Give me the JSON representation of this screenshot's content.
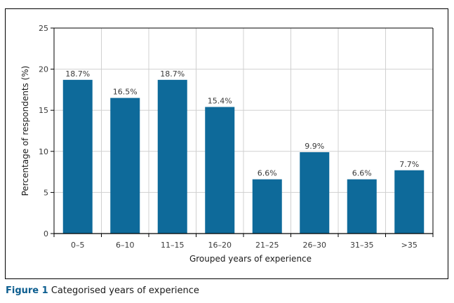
{
  "chart_data": {
    "type": "bar",
    "title": "",
    "xlabel": "Grouped years of experience",
    "ylabel": "Percentage of respondents (%)",
    "categories": [
      "0–5",
      "6–10",
      "11–15",
      "16–20",
      "21–25",
      "26–30",
      "31–35",
      ">35"
    ],
    "values": [
      18.7,
      16.5,
      18.7,
      15.4,
      6.6,
      9.9,
      6.6,
      7.7
    ],
    "data_labels": [
      "18.7%",
      "16.5%",
      "18.7%",
      "15.4%",
      "6.6%",
      "9.9%",
      "6.6%",
      "7.7%"
    ],
    "ylim": [
      0,
      25
    ],
    "yticks": [
      0,
      5,
      10,
      15,
      20,
      25
    ],
    "grid": true,
    "legend": "none",
    "bar_color": "#0e6a9a"
  },
  "caption": {
    "figure_number": "Figure 1",
    "text": "Categorised years of experience"
  }
}
